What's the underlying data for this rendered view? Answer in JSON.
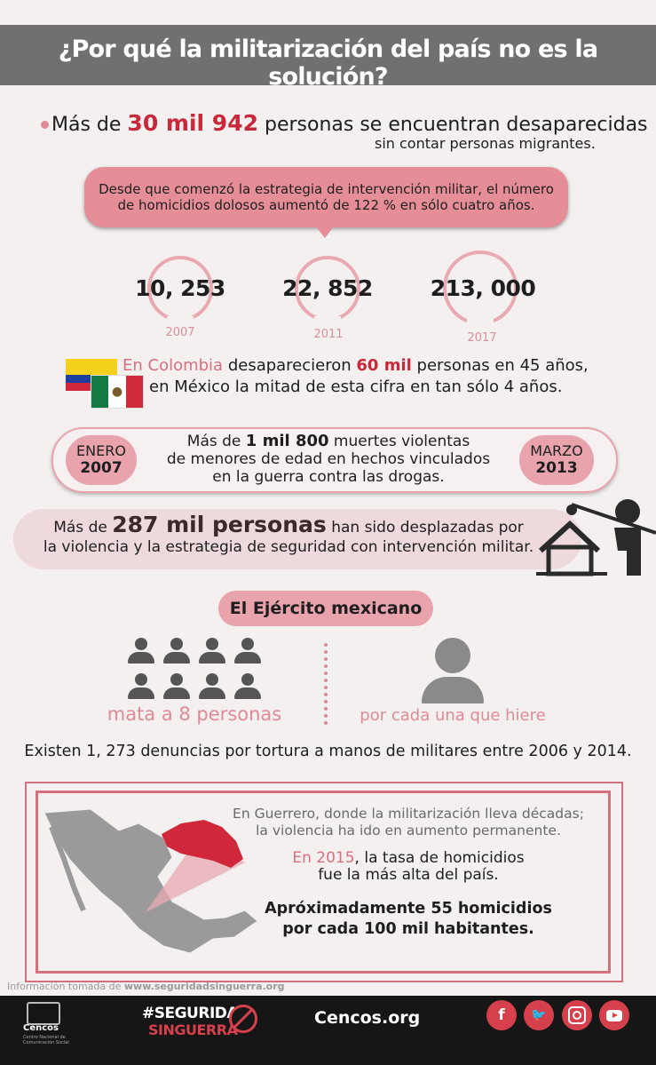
{
  "header": {
    "title": "¿Por qué la militarización del país no es la solución?"
  },
  "missing": {
    "prefix": "Más de ",
    "number": "30 mil 942",
    "suffix": " personas se encuentran desaparecidas",
    "line2": "sin contar personas migrantes."
  },
  "callout": {
    "line1": "Desde que comenzó la estrategia de intervención militar, el número",
    "line2": "de homicidios dolosos aumentó de 122 % en sólo cuatro años."
  },
  "stats": [
    {
      "value": "10, 253",
      "year": "2007"
    },
    {
      "value": "22, 852",
      "year": "2011"
    },
    {
      "value": "213, 000",
      "year": "2017"
    }
  ],
  "colombia": {
    "p1": "En Colombia",
    "p2": " desaparecieron ",
    "p3": "60 mil",
    "p4": " personas en 45 años,",
    "line2": "en México la mitad de esta cifra en tan sólo 4 años."
  },
  "minors": {
    "start_month": "ENERO",
    "start_year": "2007",
    "end_month": "MARZO",
    "end_year": "2013",
    "l1a": "Más de ",
    "l1b": "1 mil 800",
    "l1c": " muertes violentas",
    "line2": "de menores de edad en hechos vinculados",
    "line3": "en la guerra contra las drogas."
  },
  "displaced": {
    "prefix": "Más de ",
    "number": "287 mil personas",
    "suffix": " han sido desplazadas por",
    "line2": "la violencia y la estrategia de seguridad con intervención militar."
  },
  "army": {
    "title": "El Ejército mexicano",
    "kills": "mata a 8 personas",
    "per_injured": "por cada una que hiere"
  },
  "torture": {
    "text": "Existen 1, 273 denuncias por tortura a manos de militares entre 2006 y 2014."
  },
  "guerrero": {
    "line1": "En Guerrero, donde la militarización lleva décadas;",
    "line2": "la violencia ha ido en aumento permanente.",
    "year_prefix": "En 2015",
    "line3": ", la tasa de homicidios",
    "line4": "fue la más alta del país.",
    "bold1": "Apróximadamente 55 homicidios",
    "bold2": "por cada 100 mil habitantes."
  },
  "source": {
    "label": "Información tomada de ",
    "url": "www.seguridadsinguerra.org"
  },
  "footer": {
    "org": "Cencos",
    "org_sub": "Centro Nacional de Comunicación Social",
    "campaign1": "#SEGURIDAD",
    "campaign2": "SINGUERRA",
    "site": "Cencos.org"
  },
  "social_icons": [
    "facebook-icon",
    "twitter-icon",
    "instagram-icon",
    "youtube-icon"
  ],
  "colors": {
    "accent": "#c8283a",
    "pink": "#e58e98",
    "header": "#707070",
    "footer": "#161616"
  }
}
